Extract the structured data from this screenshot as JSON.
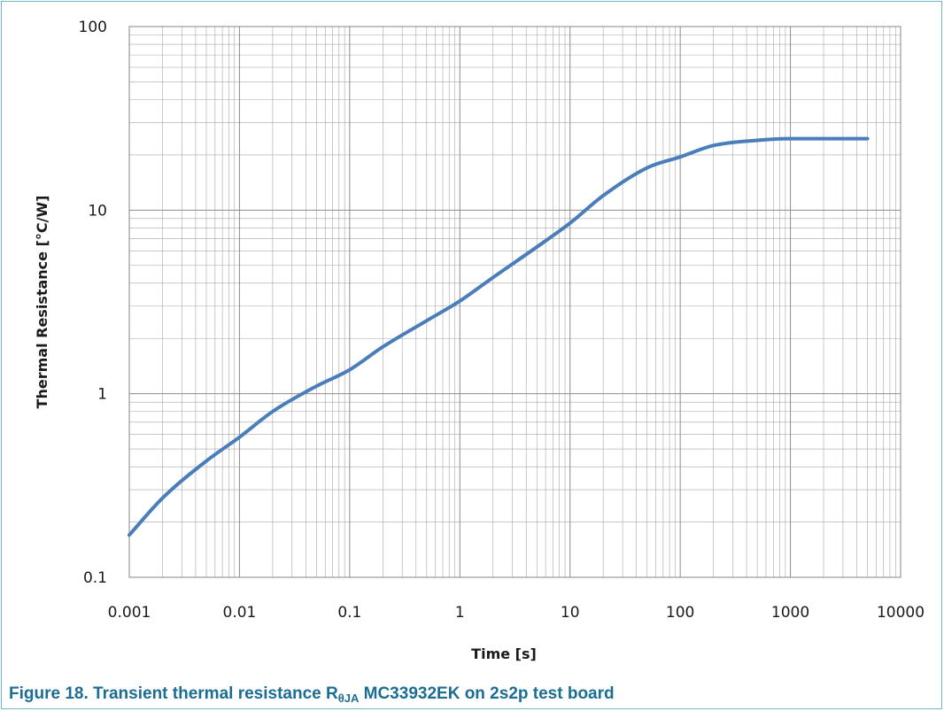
{
  "caption": {
    "prefix": "Figure 18.  Transient thermal resistance R",
    "subscript": "θJA",
    "suffix": " MC33932EK on 2s2p test board"
  },
  "colors": {
    "series": "#4a7ebb",
    "grid": "#a6a6a6",
    "caption": "#1b6d93",
    "frame": "#6fb7c4"
  },
  "chart_data": {
    "type": "line",
    "title": "",
    "xlabel": "Time [s]",
    "ylabel": "Thermal Resistance [°C/W]",
    "xscale": "log",
    "yscale": "log",
    "xlim": [
      0.001,
      10000
    ],
    "ylim": [
      0.1,
      100
    ],
    "grid": true,
    "legend": "none",
    "x_ticks": [
      "0.001",
      "0.01",
      "0.1",
      "1",
      "10",
      "100",
      "1000",
      "10000"
    ],
    "y_ticks": [
      "0.1",
      "1",
      "10",
      "100"
    ],
    "series": [
      {
        "x": [
          0.001,
          0.002,
          0.005,
          0.01,
          0.02,
          0.05,
          0.1,
          0.2,
          0.5,
          1,
          2,
          5,
          10,
          20,
          50,
          100,
          200,
          500,
          1000,
          2000,
          5000
        ],
        "y": [
          0.17,
          0.27,
          0.43,
          0.58,
          0.8,
          1.1,
          1.35,
          1.8,
          2.5,
          3.2,
          4.3,
          6.3,
          8.5,
          12,
          17,
          19.5,
          22.5,
          24,
          24.5,
          24.5,
          24.5
        ]
      }
    ]
  }
}
